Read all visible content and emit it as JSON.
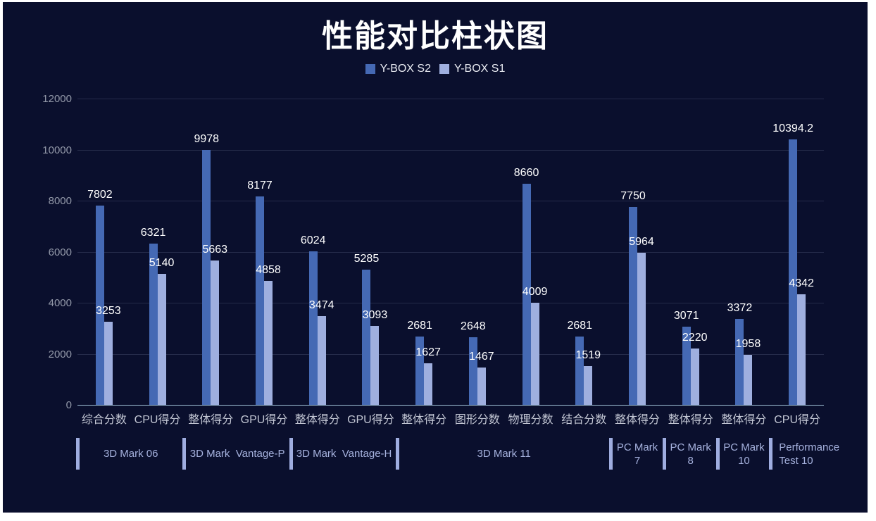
{
  "title": "性能对比柱状图",
  "legend": {
    "items": [
      {
        "label": "Y-BOX S2",
        "color": "#4569b4"
      },
      {
        "label": "Y-BOX S1",
        "color": "#9fafdf"
      }
    ]
  },
  "colors": {
    "page_background": "#ffffff",
    "canvas_background": "#0a0f2d",
    "gridline": "#252b4a",
    "axis_line": "#a2c4da",
    "y_tick_label": "#9298a8",
    "category_label": "#c3c7d4",
    "value_label": "#ffffff",
    "group_label": "#a6b2de",
    "group_divider": "#9fade0",
    "title": "#ffffff"
  },
  "chart_data": {
    "type": "bar",
    "title": "性能对比柱状图",
    "xlabel": "",
    "ylabel": "",
    "ylim": [
      0,
      12000
    ],
    "yticks": [
      0,
      2000,
      4000,
      6000,
      8000,
      10000,
      12000
    ],
    "grid": true,
    "legend_position": "top",
    "categories": [
      "综合分数",
      "CPU得分",
      "整体得分",
      "GPU得分",
      "整体得分",
      "GPU得分",
      "整体得分",
      "图形分数",
      "物理分数",
      "结合分数",
      "整体得分",
      "整体得分",
      "整体得分",
      "CPU得分"
    ],
    "series": [
      {
        "name": "Y-BOX S2",
        "color": "#4569b4",
        "values": [
          7802,
          6321,
          9978,
          8177,
          6024,
          5285,
          2681,
          2648,
          8660,
          2681,
          7750,
          3071,
          3372,
          10394.2
        ]
      },
      {
        "name": "Y-BOX S1",
        "color": "#9fafdf",
        "values": [
          3253,
          5140,
          5663,
          4858,
          3474,
          3093,
          1627,
          1467,
          4009,
          1519,
          5964,
          2220,
          1958,
          4342
        ]
      }
    ],
    "groups": [
      {
        "label": "3D Mark 06",
        "span": 2
      },
      {
        "label": "3D Mark  Vantage-P",
        "span": 2
      },
      {
        "label": "3D Mark  Vantage-H",
        "span": 2
      },
      {
        "label": "3D Mark 11",
        "span": 4
      },
      {
        "label": "PC Mark 7",
        "span": 1
      },
      {
        "label": "PC Mark 8",
        "span": 1
      },
      {
        "label": "PC Mark 10",
        "span": 1
      },
      {
        "label": "Performance Test 10",
        "span": 1
      }
    ]
  }
}
